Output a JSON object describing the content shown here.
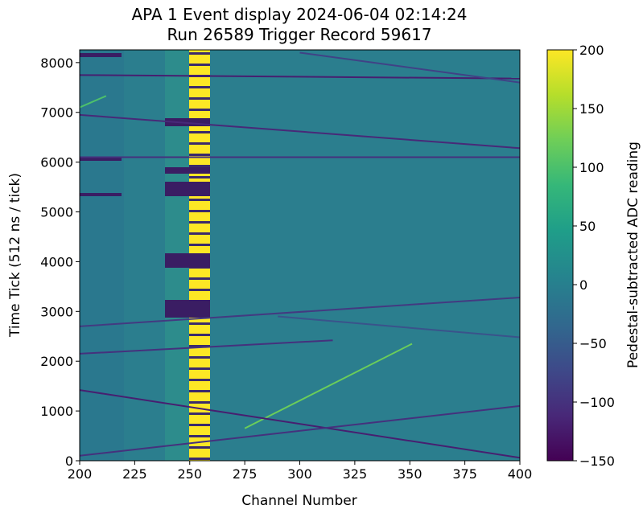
{
  "chart_data": {
    "type": "heatmap",
    "title": "APA 1 Event display 2024-06-04 02:14:24",
    "subtitle": "Run 26589 Trigger Record 59617",
    "x_label": "Channel Number",
    "y_label": "Time Tick (512 ns / tick)",
    "colorbar_label": "Pedestal-subtracted ADC reading",
    "xlim": [
      200,
      400
    ],
    "xticks": [
      200,
      225,
      250,
      275,
      300,
      325,
      350,
      375,
      400
    ],
    "ylim": [
      0,
      8256
    ],
    "yticks": [
      0,
      1000,
      2000,
      3000,
      4000,
      5000,
      6000,
      7000,
      8000
    ],
    "clim": [
      -150,
      200
    ],
    "cticks": [
      -150,
      -100,
      -50,
      0,
      50,
      100,
      150,
      200
    ],
    "colormap": "viridis",
    "tracks": [
      {
        "x": [
          275,
          351
        ],
        "y": [
          650,
          2350
        ],
        "value": 120
      },
      {
        "x": [
          200,
          400
        ],
        "y": [
          1420,
          60
        ],
        "value": -120
      },
      {
        "x": [
          200,
          400
        ],
        "y": [
          100,
          1100
        ],
        "value": -100
      },
      {
        "x": [
          200,
          315
        ],
        "y": [
          2150,
          2420
        ],
        "value": -100
      },
      {
        "x": [
          200,
          400
        ],
        "y": [
          2700,
          3280
        ],
        "value": -90
      },
      {
        "x": [
          290,
          400
        ],
        "y": [
          2900,
          2480
        ],
        "value": -60
      },
      {
        "x": [
          200,
          400
        ],
        "y": [
          6950,
          6280
        ],
        "value": -110
      },
      {
        "x": [
          200,
          400
        ],
        "y": [
          7750,
          7680
        ],
        "value": -120
      },
      {
        "x": [
          200,
          400
        ],
        "y": [
          6100,
          6100
        ],
        "value": -100
      },
      {
        "x": [
          300,
          400
        ],
        "y": [
          8200,
          7600
        ],
        "value": -80
      },
      {
        "x": [
          200,
          212
        ],
        "y": [
          7100,
          7330
        ],
        "value": 100
      }
    ]
  }
}
